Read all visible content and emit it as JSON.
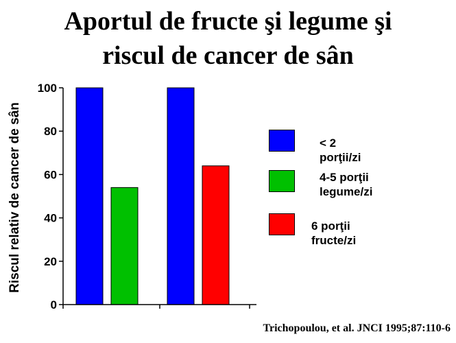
{
  "chart_data": {
    "type": "bar",
    "title": "Aportul de fructe şi legume şi riscul de cancer de sân",
    "title_lines": [
      "Aportul de fructe şi legume şi",
      "riscul de cancer de sân"
    ],
    "xlabel": "",
    "ylabel": "Riscul relativ de cancer de sân",
    "ylim": [
      0,
      100
    ],
    "yticks": [
      0,
      20,
      40,
      60,
      80,
      100
    ],
    "grid": false,
    "legend_position": "right",
    "groups": [
      {
        "bars": [
          {
            "series": "< 2 porţii/zi",
            "value": 100
          },
          {
            "series": "4-5 porţii legume/zi",
            "value": 54
          }
        ]
      },
      {
        "bars": [
          {
            "series": "< 2 porţii/zi",
            "value": 100
          },
          {
            "series": "6 porţii fructe/zi",
            "value": 64
          }
        ]
      }
    ],
    "legend": [
      {
        "name": "< 2 porţii/zi",
        "label": "< 2 porţii/zi",
        "color": "#0000ff"
      },
      {
        "name": "4-5 porţii legume/zi",
        "label": "4-5 porţii\nlegume/zi",
        "color": "#00c000"
      },
      {
        "name": "6 porţii fructe/zi",
        "label": "6 porţii fructe/zi",
        "color": "#ff0000"
      }
    ]
  },
  "citation": "Trichopoulou, et al.  JNCI 1995;87:110-6"
}
